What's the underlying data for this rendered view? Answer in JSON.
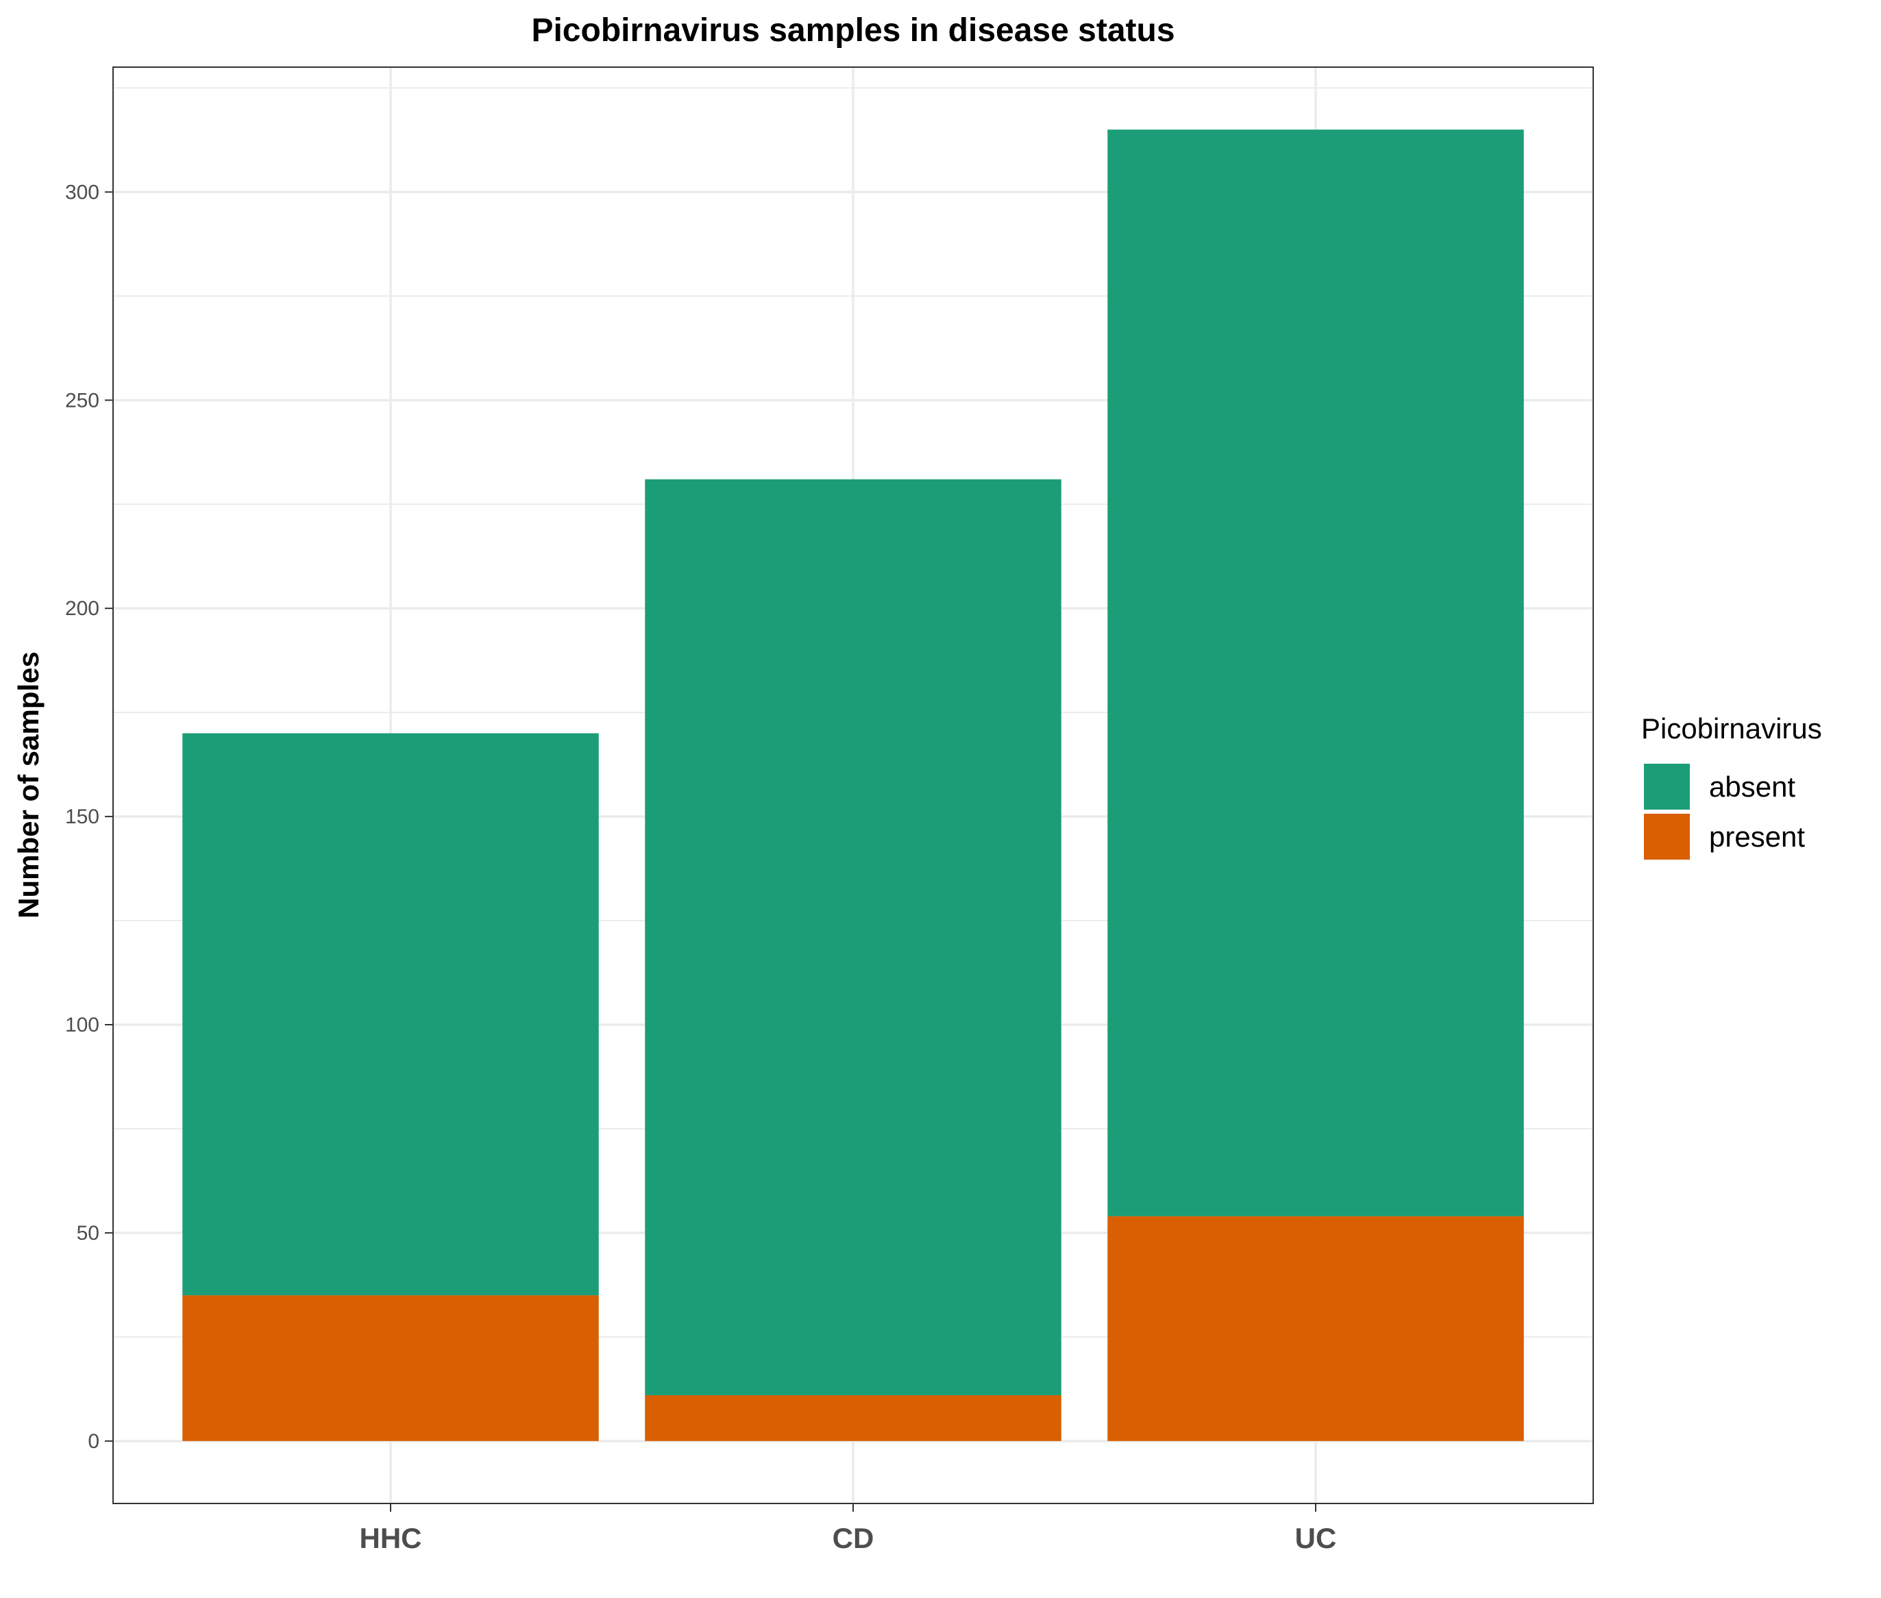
{
  "chart_data": {
    "type": "bar",
    "stacked": true,
    "title": "Picobirnavirus samples in disease status",
    "xlabel": "",
    "ylabel": "Number of samples",
    "categories": [
      "HHC",
      "CD",
      "UC"
    ],
    "series": [
      {
        "name": "absent",
        "values": [
          135,
          220,
          261
        ],
        "color": "#1b9e77"
      },
      {
        "name": "present",
        "values": [
          35,
          11,
          54
        ],
        "color": "#d95f02"
      }
    ],
    "ylim": [
      -15,
      330
    ],
    "yticks": [
      0,
      50,
      100,
      150,
      200,
      250,
      300
    ],
    "grid": true,
    "legend": {
      "title": "Picobirnavirus",
      "position": "right"
    }
  }
}
